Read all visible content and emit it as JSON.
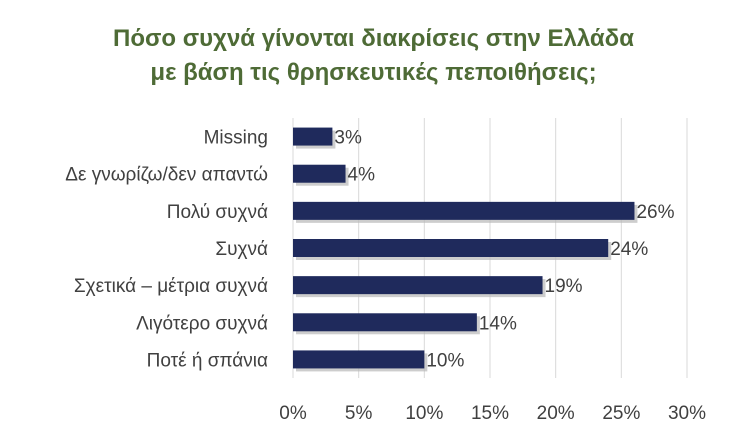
{
  "chart_data": {
    "type": "bar",
    "orientation": "horizontal",
    "title_lines": [
      "Πόσο συχνά γίνονται διακρίσεις στην Ελλάδα",
      "με βάση τις θρησκευτικές πεποιθήσεις;"
    ],
    "categories": [
      "Missing",
      "Δε γνωρίζω/δεν απαντώ",
      "Πολύ συχνά",
      "Συχνά",
      "Σχετικά – μέτρια συχνά",
      "Λιγότερο συχνά",
      "Ποτέ ή σπάνια"
    ],
    "values": [
      3,
      4,
      26,
      24,
      19,
      14,
      10
    ],
    "data_labels": [
      "3%",
      "4%",
      "26%",
      "24%",
      "19%",
      "14%",
      "10%"
    ],
    "xlim": [
      0,
      30
    ],
    "xticks": [
      0,
      5,
      10,
      15,
      20,
      25,
      30
    ],
    "xtick_labels": [
      "0%",
      "5%",
      "10%",
      "15%",
      "20%",
      "25%",
      "30%"
    ],
    "grid": true,
    "legend": "none",
    "colors": {
      "bar": "#1f2a5c",
      "bar_shadow": "#b8b8b8",
      "grid": "#d9d9d9",
      "title": "#4e6b36",
      "text": "#404040"
    }
  }
}
